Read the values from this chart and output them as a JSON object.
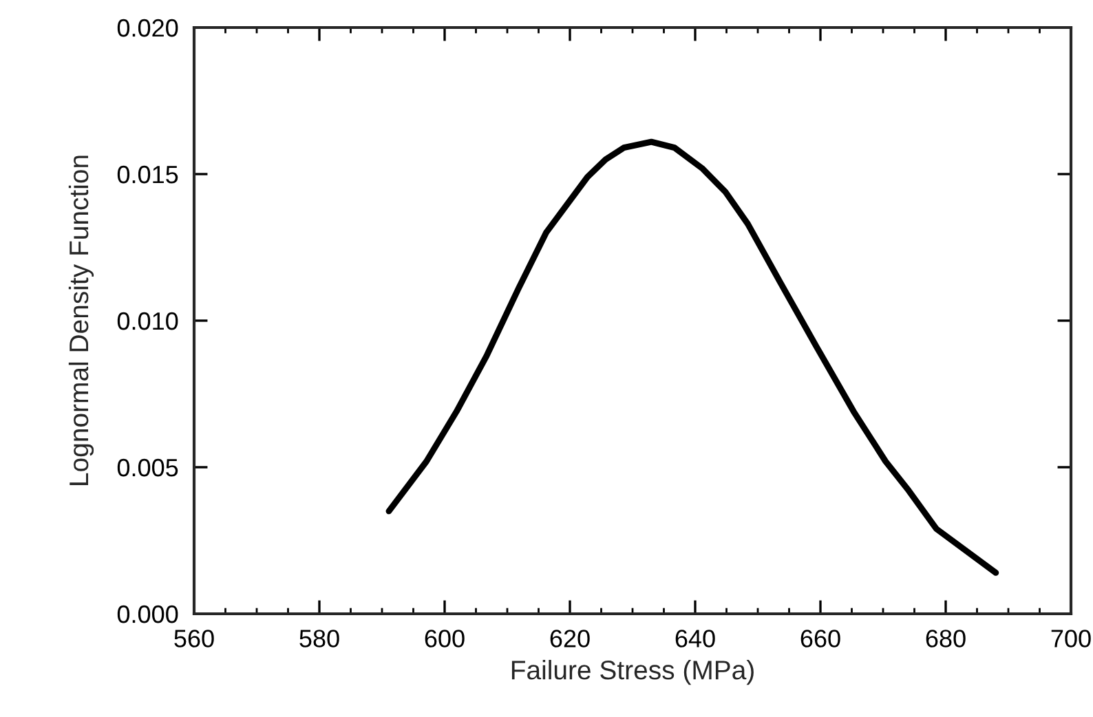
{
  "chart_data": {
    "type": "line",
    "xlabel": "Failure Stress (MPa)",
    "ylabel": "Lognormal Density Function",
    "series": [
      {
        "color": "#000000",
        "x": [
          591.1,
          597.1,
          601.9,
          606.7,
          611.8,
          616.2,
          622.8,
          625.7,
          628.6,
          633.0,
          636.7,
          641.1,
          644.8,
          648.4,
          653.6,
          659.4,
          665.3,
          670.4,
          674.1,
          678.5,
          688.0
        ],
        "values": [
          0.0035,
          0.0052,
          0.0069,
          0.0088,
          0.0111,
          0.013,
          0.0149,
          0.0155,
          0.0159,
          0.0161,
          0.0159,
          0.0152,
          0.0144,
          0.0133,
          0.0113,
          0.0091,
          0.0069,
          0.0052,
          0.0042,
          0.0029,
          0.0014
        ]
      }
    ],
    "xlim": [
      560,
      700
    ],
    "xticks": [
      560,
      580,
      600,
      620,
      640,
      660,
      680,
      700
    ],
    "ylim": [
      0,
      0.02
    ],
    "yticks": [
      {
        "value": 0,
        "label": "0.000"
      },
      {
        "value": 0.005,
        "label": "0.005"
      },
      {
        "value": 0.01,
        "label": "0.010"
      },
      {
        "value": 0.015,
        "label": "0.015"
      },
      {
        "value": 0.02,
        "label": "0.020"
      }
    ],
    "grid": false,
    "legend": false,
    "marker": "none",
    "line_style": "solid"
  }
}
